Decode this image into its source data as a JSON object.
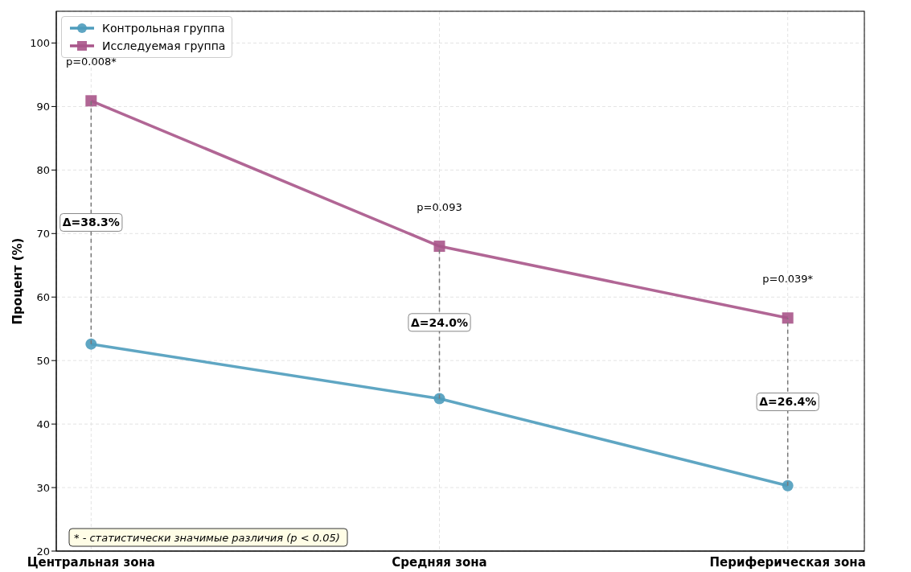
{
  "chart_data": {
    "type": "line",
    "ylabel": "Процент (%)",
    "categories": [
      "Центральная зона",
      "Средняя зона",
      "Периферическая зона"
    ],
    "series": [
      {
        "name": "Контрольная группа",
        "color": "#4e9cbc",
        "marker": "circle",
        "values": [
          52.6,
          44.0,
          30.3
        ]
      },
      {
        "name": "Исследуемая группа",
        "color": "#a9558a",
        "marker": "square",
        "values": [
          90.9,
          68.0,
          56.7
        ]
      }
    ],
    "ylim": [
      20,
      105
    ],
    "yticks": [
      20,
      30,
      40,
      50,
      60,
      70,
      80,
      90,
      100
    ],
    "grid": true,
    "legend": "top left",
    "annotations": [
      "p=0.008*",
      "p=0.093",
      "p=0.039*",
      "Δ=38.3%",
      "Δ=24.0%",
      "Δ=26.4%",
      "* - статистически значимые различия (p < 0.05)"
    ]
  }
}
